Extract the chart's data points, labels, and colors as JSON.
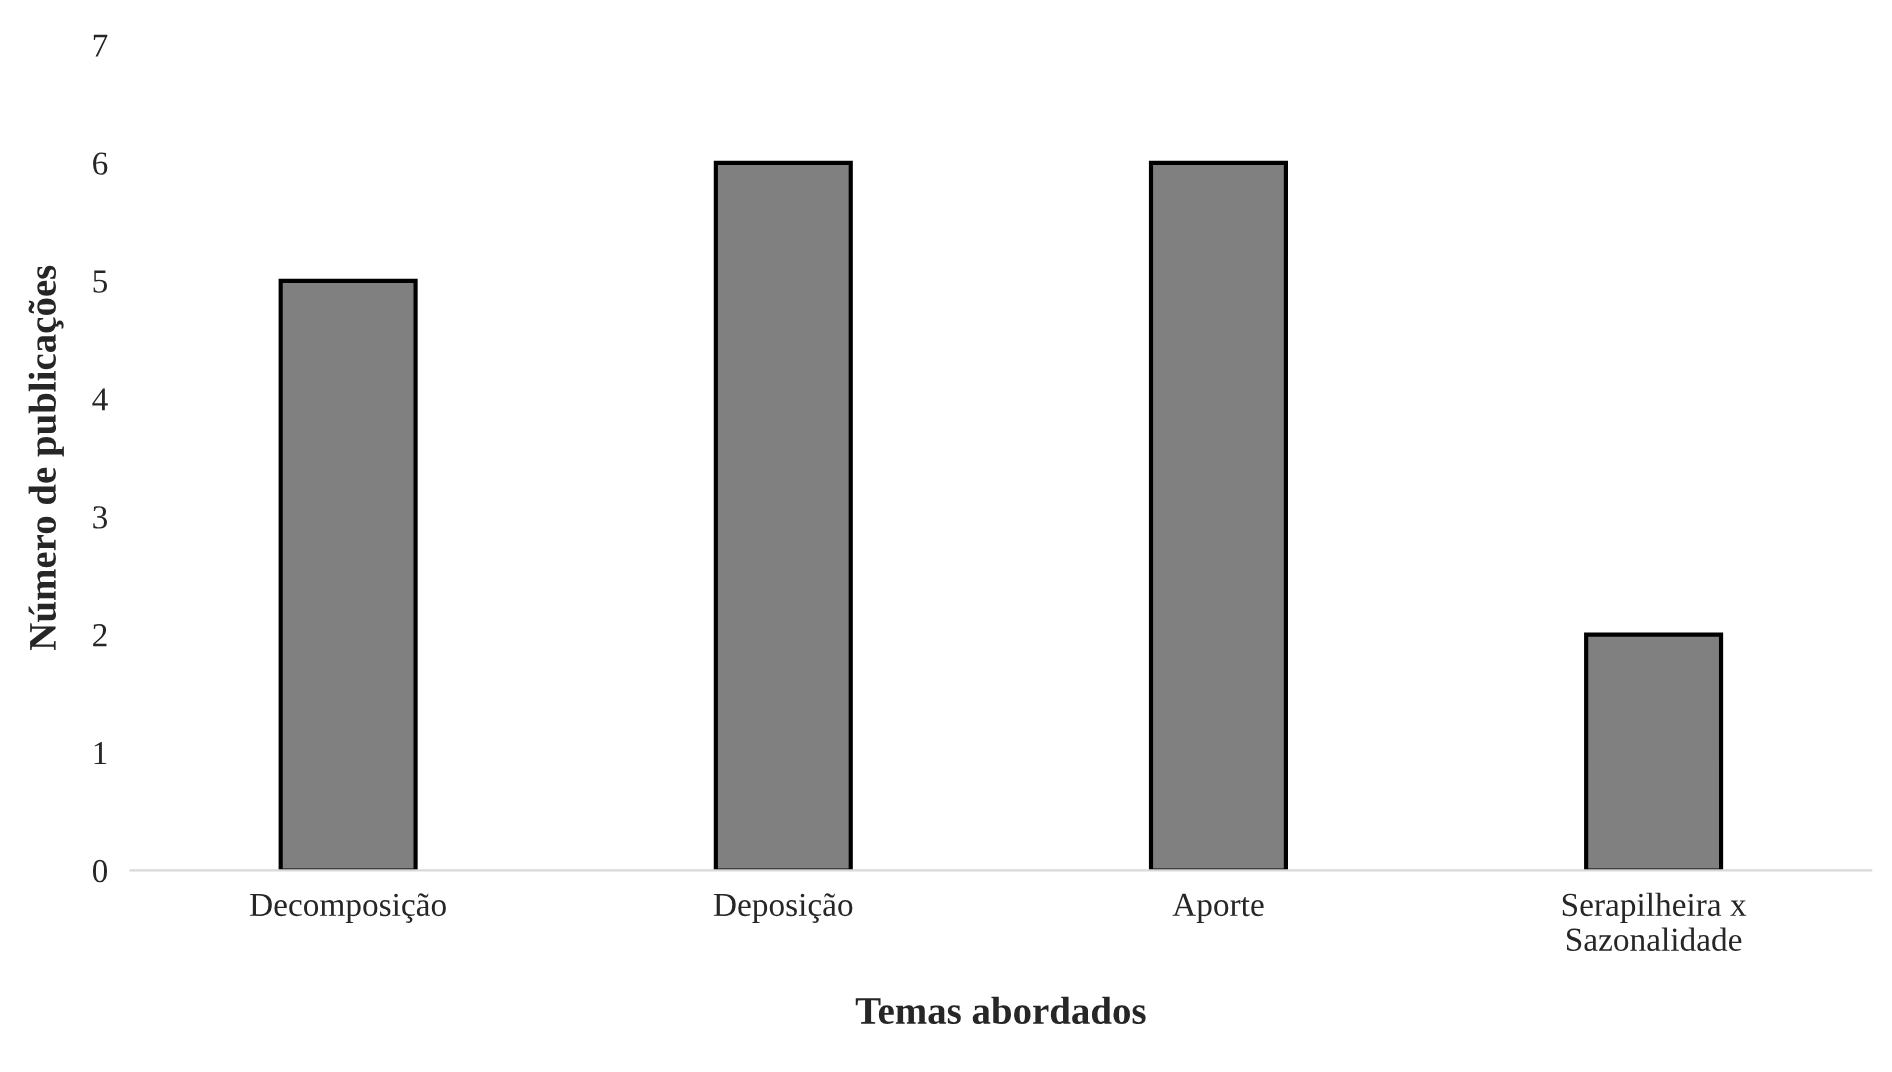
{
  "chart_data": {
    "type": "bar",
    "xlabel": "Temas abordados",
    "ylabel": "Número de publicações",
    "categories": [
      "Decomposição",
      "Deposição",
      "Aporte",
      "Serapilheira x\nSazonalidade"
    ],
    "values": [
      5,
      6,
      6,
      2
    ],
    "color": "#808080",
    "ylim": [
      0,
      7
    ],
    "yticks": [
      0,
      1,
      2,
      3,
      4,
      5,
      6,
      7
    ],
    "grid": false,
    "legend": false
  }
}
